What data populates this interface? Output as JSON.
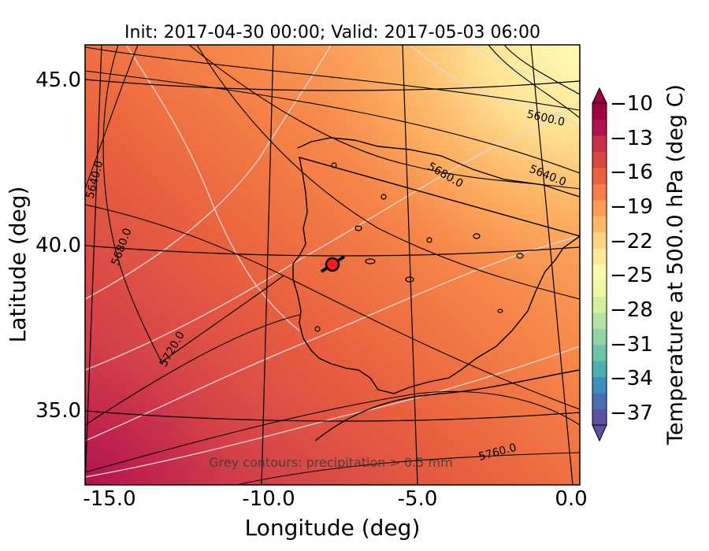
{
  "figure": {
    "title": "Init: 2017-04-30 00:00; Valid: 2017-05-03 06:00",
    "xlabel": "Longitude (deg)",
    "ylabel": "Latitude (deg)",
    "note": "Grey contours: precipitation > 0.5 mm"
  },
  "axes": {
    "x_ticks": [
      "-15.0",
      "-10.0",
      "-5.0",
      "0.0"
    ],
    "y_ticks": [
      "45.0",
      "40.0",
      "35.0"
    ],
    "xlim": [
      -15.8,
      0.2
    ],
    "ylim": [
      32.6,
      46.0
    ]
  },
  "colorbar": {
    "label": "Temperature at 500.0 hPa (deg C)",
    "ticks": [
      "−10",
      "−13",
      "−16",
      "−19",
      "−22",
      "−25",
      "−28",
      "−31",
      "−34",
      "−37"
    ],
    "range": [
      -38,
      -10
    ],
    "colors": [
      "#5e4fa2",
      "#4a6db2",
      "#3f8dbb",
      "#4faeb0",
      "#6dc3a4",
      "#92d4a3",
      "#b5e3a3",
      "#d5f09d",
      "#eef8a5",
      "#fbf8b0",
      "#fee99a",
      "#fed381",
      "#fdb868",
      "#fa9b58",
      "#f47f4b",
      "#e8623f",
      "#d8473f",
      "#c92e4c",
      "#b1124f",
      "#9e0142"
    ]
  },
  "height_contours": {
    "labels": [
      "5600.0",
      "5640.0",
      "5680.0",
      "5720.0",
      "5760.0",
      "5640.0",
      "5680.0"
    ]
  },
  "marker": {
    "lon": -7.7,
    "lat": 39.4,
    "color": "#ff1a1a"
  }
}
